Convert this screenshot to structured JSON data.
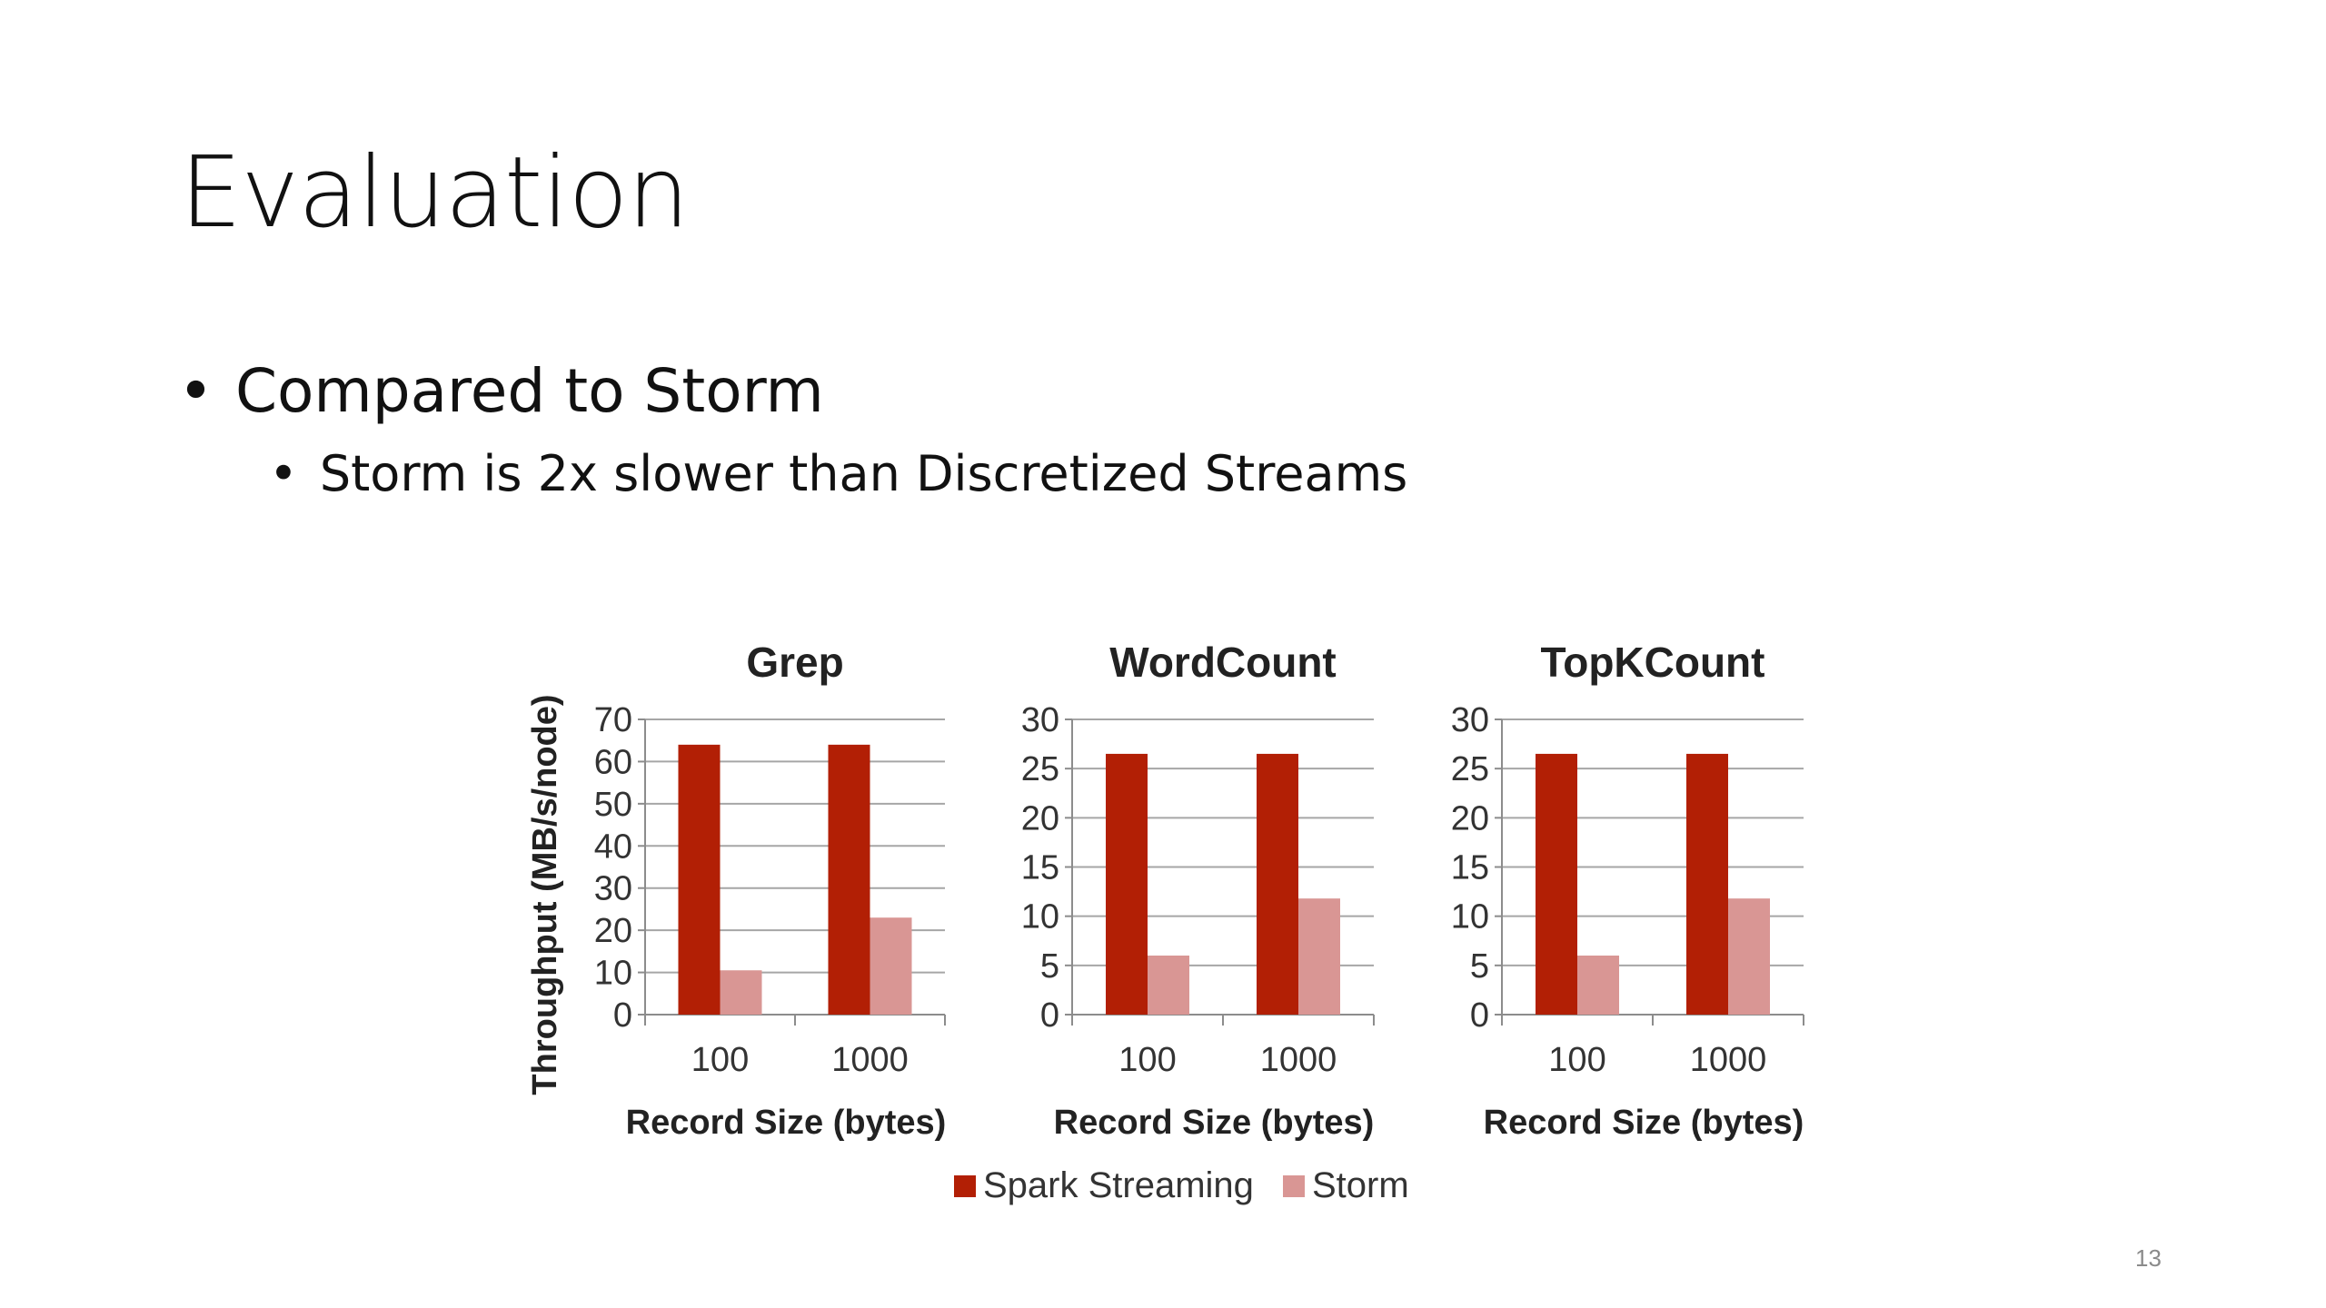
{
  "slide": {
    "title": "Evaluation",
    "bullets": [
      {
        "text": "Compared to Storm",
        "level": 1
      },
      {
        "text": "Storm is 2x slower than Discretized Streams",
        "level": 2
      }
    ],
    "bullet_glyph": "•",
    "page_number": "13"
  },
  "colors": {
    "spark": "#b21f05",
    "storm": "#d99694",
    "grid": "#a6a6a6",
    "axis": "#8c8c8c"
  },
  "chart_data": [
    {
      "type": "bar",
      "title": "Grep",
      "categories": [
        "100",
        "1000"
      ],
      "xlabel": "Record Size (bytes)",
      "ylabel": "Throughput (MB/s/node)",
      "ylim": [
        0,
        70
      ],
      "yticks": [
        "0",
        "10",
        "20",
        "30",
        "40",
        "50",
        "60",
        "70"
      ],
      "series": [
        {
          "name": "Spark Streaming",
          "values": [
            64,
            64
          ]
        },
        {
          "name": "Storm",
          "values": [
            10.5,
            23
          ]
        }
      ]
    },
    {
      "type": "bar",
      "title": "WordCount",
      "categories": [
        "100",
        "1000"
      ],
      "xlabel": "Record Size (bytes)",
      "ylabel": "",
      "ylim": [
        0,
        30
      ],
      "yticks": [
        "0",
        "5",
        "10",
        "15",
        "20",
        "25",
        "30"
      ],
      "series": [
        {
          "name": "Spark Streaming",
          "values": [
            26.5,
            26.5
          ]
        },
        {
          "name": "Storm",
          "values": [
            6,
            11.8
          ]
        }
      ]
    },
    {
      "type": "bar",
      "title": "TopKCount",
      "categories": [
        "100",
        "1000"
      ],
      "xlabel": "Record Size (bytes)",
      "ylabel": "",
      "ylim": [
        0,
        30
      ],
      "yticks": [
        "0",
        "5",
        "10",
        "15",
        "20",
        "25",
        "30"
      ],
      "series": [
        {
          "name": "Spark Streaming",
          "values": [
            26.5,
            26.5
          ]
        },
        {
          "name": "Storm",
          "values": [
            6,
            11.8
          ]
        }
      ]
    }
  ],
  "legend": {
    "items": [
      {
        "label": "Spark Streaming"
      },
      {
        "label": "Storm"
      }
    ],
    "placement": "bottom"
  }
}
